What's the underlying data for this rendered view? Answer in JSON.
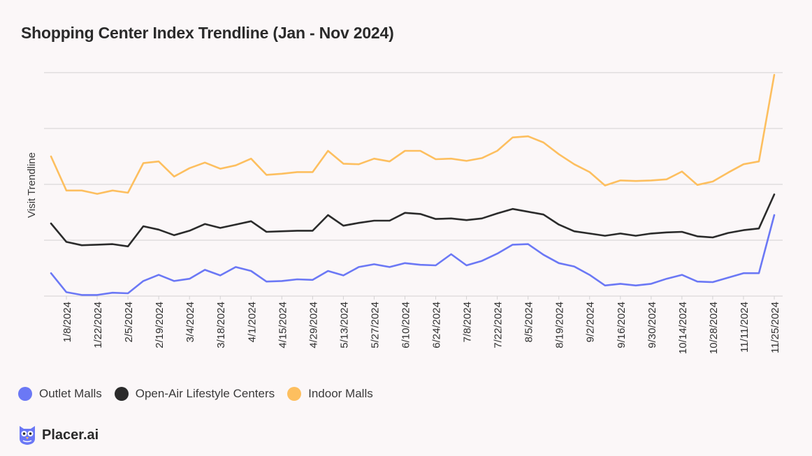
{
  "title": "Shopping Center Index Trendline (Jan - Nov 2024)",
  "brand": {
    "name": "Placer.ai",
    "logo_icon": "owl-logo-icon"
  },
  "colors": {
    "outlet": "#6b78f5",
    "openair": "#2b2b2b",
    "indoor": "#fdbf5f",
    "grid": "#d3d1d2",
    "background": "#fbf7f8"
  },
  "chart_data": {
    "type": "line",
    "title": "Shopping Center Index Trendline (Jan - Nov 2024)",
    "xlabel": "",
    "ylabel": "Visit Trendline",
    "y_tick_labels_shown": false,
    "grid": "horizontal",
    "legend_placement": "bottom-left",
    "ylim": [
      0,
      4
    ],
    "x": [
      "1/1/2024",
      "1/8/2024",
      "1/15/2024",
      "1/22/2024",
      "1/29/2024",
      "2/5/2024",
      "2/12/2024",
      "2/19/2024",
      "2/26/2024",
      "3/4/2024",
      "3/11/2024",
      "3/18/2024",
      "3/25/2024",
      "4/1/2024",
      "4/8/2024",
      "4/15/2024",
      "4/22/2024",
      "4/29/2024",
      "5/6/2024",
      "5/13/2024",
      "5/20/2024",
      "5/27/2024",
      "6/3/2024",
      "6/10/2024",
      "6/17/2024",
      "6/24/2024",
      "7/1/2024",
      "7/8/2024",
      "7/15/2024",
      "7/22/2024",
      "7/29/2024",
      "8/5/2024",
      "8/12/2024",
      "8/19/2024",
      "8/26/2024",
      "9/2/2024",
      "9/9/2024",
      "9/16/2024",
      "9/23/2024",
      "9/30/2024",
      "10/7/2024",
      "10/14/2024",
      "10/21/2024",
      "10/28/2024",
      "11/4/2024",
      "11/11/2024",
      "11/18/2024",
      "11/25/2024"
    ],
    "x_tick_labels": [
      "1/8/2024",
      "1/22/2024",
      "2/5/2024",
      "2/19/2024",
      "3/4/2024",
      "3/18/2024",
      "4/1/2024",
      "4/15/2024",
      "4/29/2024",
      "5/13/2024",
      "5/27/2024",
      "6/10/2024",
      "6/24/2024",
      "7/8/2024",
      "7/22/2024",
      "8/5/2024",
      "8/19/2024",
      "9/2/2024",
      "9/16/2024",
      "9/30/2024",
      "10/14/2024",
      "10/28/2024",
      "11/11/2024",
      "11/25/2024"
    ],
    "series": [
      {
        "name": "Outlet Malls",
        "color": "#6b78f5",
        "values": [
          0.41,
          0.07,
          0.02,
          0.02,
          0.06,
          0.05,
          0.27,
          0.38,
          0.27,
          0.31,
          0.47,
          0.37,
          0.52,
          0.45,
          0.26,
          0.27,
          0.3,
          0.29,
          0.45,
          0.37,
          0.52,
          0.57,
          0.52,
          0.59,
          0.56,
          0.55,
          0.75,
          0.55,
          0.63,
          0.76,
          0.92,
          0.93,
          0.74,
          0.59,
          0.53,
          0.38,
          0.19,
          0.22,
          0.19,
          0.22,
          0.31,
          0.38,
          0.26,
          0.25,
          0.33,
          0.41,
          0.41,
          1.45
        ]
      },
      {
        "name": "Open-Air Lifestyle Centers",
        "color": "#2b2b2b",
        "values": [
          1.3,
          0.97,
          0.91,
          0.92,
          0.93,
          0.89,
          1.25,
          1.19,
          1.09,
          1.17,
          1.29,
          1.22,
          1.28,
          1.34,
          1.15,
          1.16,
          1.17,
          1.17,
          1.45,
          1.26,
          1.31,
          1.35,
          1.35,
          1.49,
          1.47,
          1.38,
          1.39,
          1.36,
          1.39,
          1.48,
          1.56,
          1.51,
          1.46,
          1.28,
          1.16,
          1.12,
          1.08,
          1.12,
          1.08,
          1.12,
          1.14,
          1.15,
          1.07,
          1.05,
          1.13,
          1.18,
          1.21,
          1.82
        ]
      },
      {
        "name": "Indoor Malls",
        "color": "#fdbf5f",
        "values": [
          2.5,
          1.89,
          1.89,
          1.83,
          1.89,
          1.85,
          2.38,
          2.41,
          2.14,
          2.29,
          2.39,
          2.28,
          2.34,
          2.46,
          2.17,
          2.19,
          2.22,
          2.22,
          2.6,
          2.37,
          2.36,
          2.46,
          2.41,
          2.6,
          2.6,
          2.45,
          2.46,
          2.42,
          2.47,
          2.6,
          2.84,
          2.86,
          2.75,
          2.54,
          2.36,
          2.22,
          1.98,
          2.07,
          2.06,
          2.07,
          2.09,
          2.23,
          1.99,
          2.05,
          2.21,
          2.36,
          2.41,
          3.96
        ]
      }
    ]
  }
}
